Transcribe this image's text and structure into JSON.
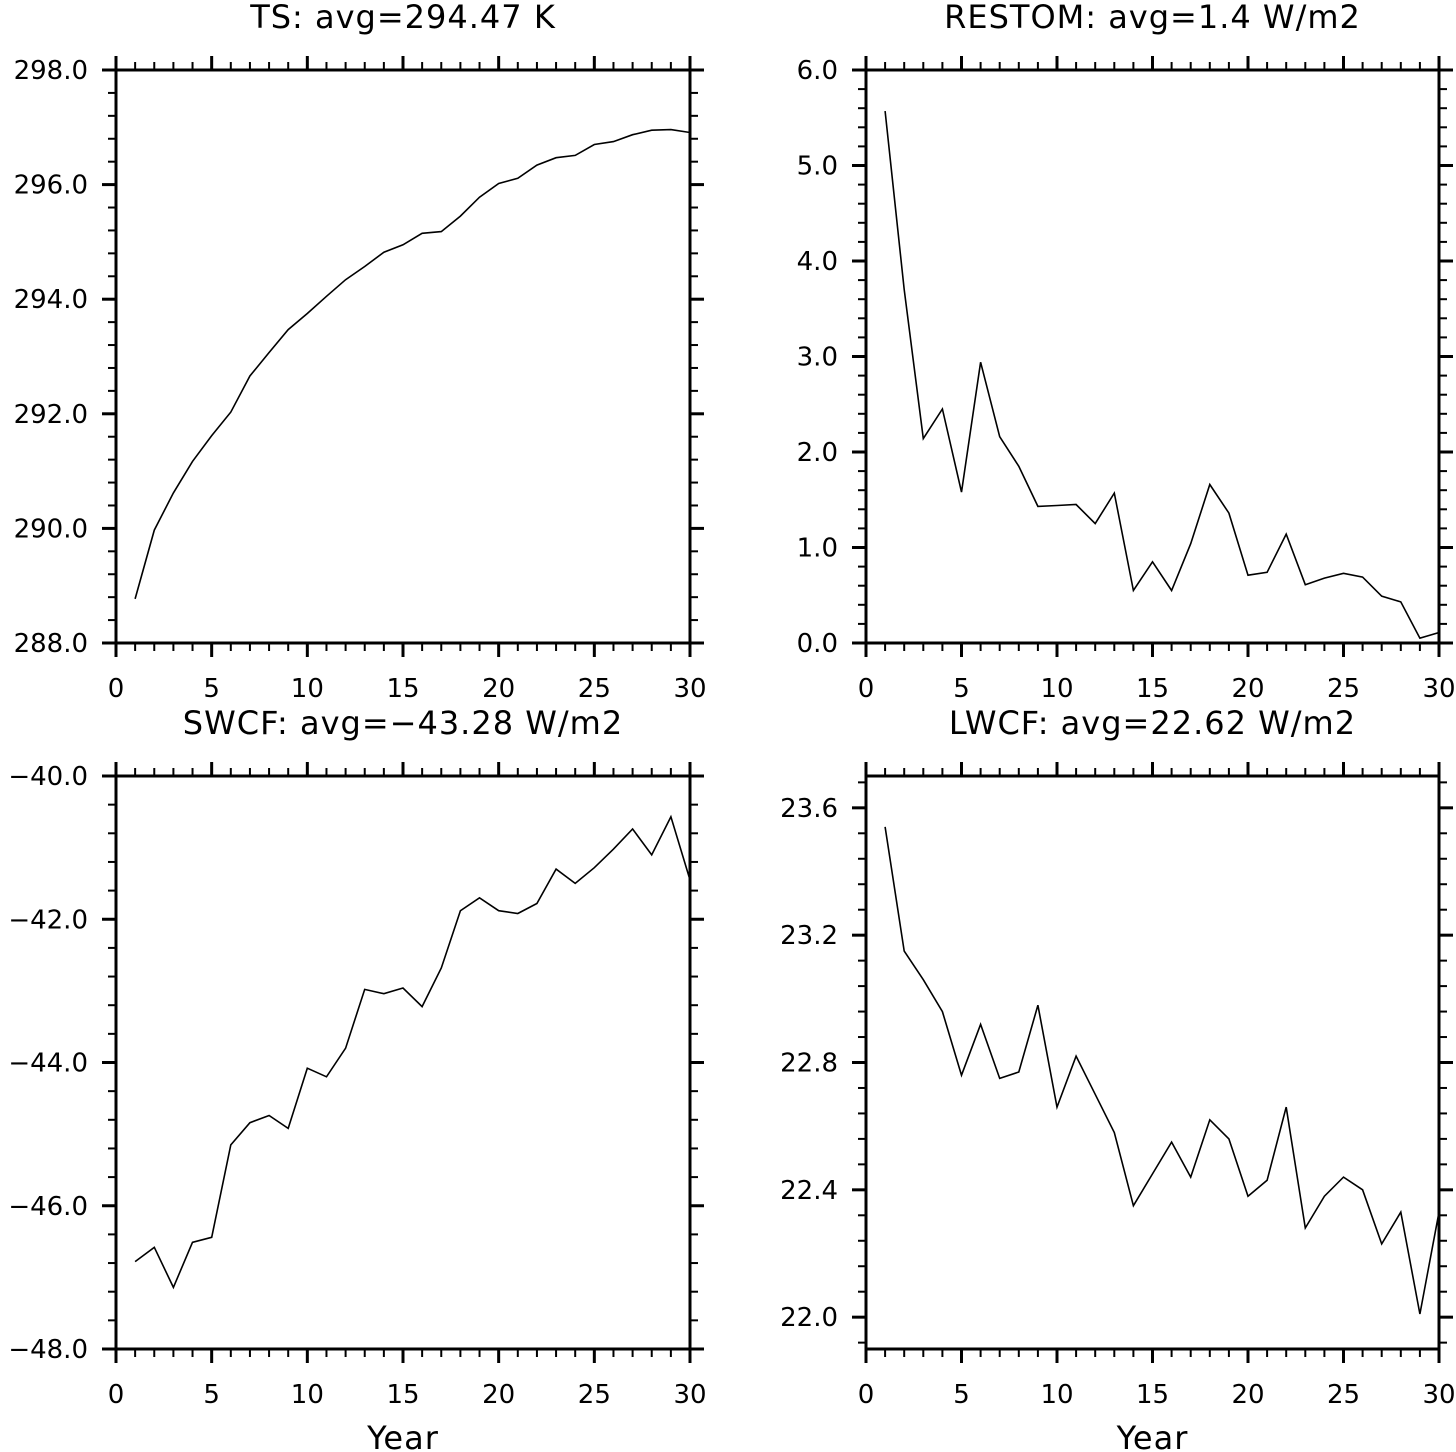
{
  "chart_data": [
    {
      "type": "line",
      "title": "TS: avg=294.47 K",
      "xlabel": "",
      "ylabel": "",
      "xlim": [
        0,
        30
      ],
      "ylim": [
        288,
        298
      ],
      "xticks": [
        0,
        5,
        10,
        15,
        20,
        25,
        30
      ],
      "xtick_labels": [
        "0",
        "5",
        "10",
        "15",
        "20",
        "25",
        "30"
      ],
      "yticks": [
        288,
        290,
        292,
        294,
        296,
        298
      ],
      "ytick_labels": [
        "288.0",
        "290.0",
        "292.0",
        "294.0",
        "296.0",
        "298.0"
      ],
      "grid": false,
      "x": [
        1,
        2,
        3,
        4,
        5,
        6,
        7,
        8,
        9,
        10,
        11,
        12,
        13,
        14,
        15,
        16,
        17,
        18,
        19,
        20,
        21,
        22,
        23,
        24,
        25,
        26,
        27,
        28,
        29,
        30
      ],
      "y": [
        288.77,
        289.97,
        290.62,
        291.17,
        291.62,
        292.03,
        292.66,
        293.07,
        293.47,
        293.75,
        294.05,
        294.34,
        294.57,
        294.82,
        294.95,
        295.15,
        295.18,
        295.45,
        295.78,
        296.02,
        296.11,
        296.34,
        296.47,
        296.51,
        296.7,
        296.75,
        296.87,
        296.95,
        296.96,
        296.91
      ]
    },
    {
      "type": "line",
      "title": "RESTOM: avg=1.4 W/m2",
      "xlabel": "",
      "ylabel": "",
      "xlim": [
        0,
        30
      ],
      "ylim": [
        0,
        6
      ],
      "xticks": [
        0,
        5,
        10,
        15,
        20,
        25,
        30
      ],
      "xtick_labels": [
        "0",
        "5",
        "10",
        "15",
        "20",
        "25",
        "30"
      ],
      "yticks": [
        0,
        1,
        2,
        3,
        4,
        5,
        6
      ],
      "ytick_labels": [
        "0.0",
        "1.0",
        "2.0",
        "3.0",
        "4.0",
        "5.0",
        "6.0"
      ],
      "grid": false,
      "x": [
        1,
        2,
        3,
        4,
        5,
        6,
        7,
        8,
        9,
        10,
        11,
        12,
        13,
        14,
        15,
        16,
        17,
        18,
        19,
        20,
        21,
        22,
        23,
        24,
        25,
        26,
        27,
        28,
        29,
        30
      ],
      "y": [
        5.57,
        3.7,
        2.14,
        2.45,
        1.58,
        2.94,
        2.16,
        1.85,
        1.43,
        1.44,
        1.45,
        1.25,
        1.57,
        0.55,
        0.85,
        0.55,
        1.04,
        1.66,
        1.36,
        0.71,
        0.74,
        1.14,
        0.61,
        0.68,
        0.73,
        0.69,
        0.49,
        0.43,
        0.05,
        0.11
      ]
    },
    {
      "type": "line",
      "title": "SWCF: avg=−43.28 W/m2",
      "xlabel": "Year",
      "ylabel": "",
      "xlim": [
        0,
        30
      ],
      "ylim": [
        -48,
        -40
      ],
      "xticks": [
        0,
        5,
        10,
        15,
        20,
        25,
        30
      ],
      "xtick_labels": [
        "0",
        "5",
        "10",
        "15",
        "20",
        "25",
        "30"
      ],
      "yticks": [
        -48,
        -46,
        -44,
        -42,
        -40
      ],
      "ytick_labels": [
        "−48.0",
        "−46.0",
        "−44.0",
        "−42.0",
        "−40.0"
      ],
      "grid": false,
      "x": [
        1,
        2,
        3,
        4,
        5,
        6,
        7,
        8,
        9,
        10,
        11,
        12,
        13,
        14,
        15,
        16,
        17,
        18,
        19,
        20,
        21,
        22,
        23,
        24,
        25,
        26,
        27,
        28,
        29,
        30
      ],
      "y": [
        -46.78,
        -46.58,
        -47.14,
        -46.51,
        -46.44,
        -45.15,
        -44.84,
        -44.74,
        -44.92,
        -44.08,
        -44.2,
        -43.8,
        -42.98,
        -43.04,
        -42.96,
        -43.22,
        -42.68,
        -41.88,
        -41.7,
        -41.88,
        -41.92,
        -41.78,
        -41.3,
        -41.5,
        -41.28,
        -41.02,
        -40.74,
        -41.1,
        -40.57,
        -41.45
      ]
    },
    {
      "type": "line",
      "title": "LWCF: avg=22.62 W/m2",
      "xlabel": "Year",
      "ylabel": "",
      "xlim": [
        0,
        30
      ],
      "ylim": [
        21.9,
        23.7
      ],
      "xticks": [
        0,
        5,
        10,
        15,
        20,
        25,
        30
      ],
      "xtick_labels": [
        "0",
        "5",
        "10",
        "15",
        "20",
        "25",
        "30"
      ],
      "yticks": [
        22.0,
        22.4,
        22.8,
        23.2,
        23.6
      ],
      "ytick_labels": [
        "22.0",
        "22.4",
        "22.8",
        "23.2",
        "23.6"
      ],
      "grid": false,
      "x": [
        1,
        2,
        3,
        4,
        5,
        6,
        7,
        8,
        9,
        10,
        11,
        12,
        13,
        14,
        15,
        16,
        17,
        18,
        19,
        20,
        21,
        22,
        23,
        24,
        25,
        26,
        27,
        28,
        29,
        30
      ],
      "y": [
        23.54,
        23.15,
        23.06,
        22.96,
        22.76,
        22.92,
        22.75,
        22.77,
        22.98,
        22.66,
        22.82,
        22.7,
        22.58,
        22.35,
        22.45,
        22.55,
        22.44,
        22.62,
        22.56,
        22.38,
        22.43,
        22.66,
        22.28,
        22.38,
        22.44,
        22.4,
        22.23,
        22.33,
        22.01,
        22.33
      ]
    }
  ]
}
